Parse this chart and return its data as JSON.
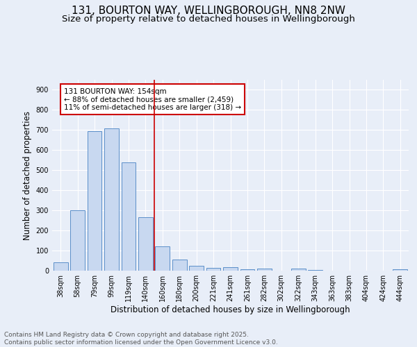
{
  "title_line1": "131, BOURTON WAY, WELLINGBOROUGH, NN8 2NW",
  "title_line2": "Size of property relative to detached houses in Wellingborough",
  "xlabel": "Distribution of detached houses by size in Wellingborough",
  "ylabel": "Number of detached properties",
  "categories": [
    "38sqm",
    "58sqm",
    "79sqm",
    "99sqm",
    "119sqm",
    "140sqm",
    "160sqm",
    "180sqm",
    "200sqm",
    "221sqm",
    "241sqm",
    "261sqm",
    "282sqm",
    "302sqm",
    "322sqm",
    "343sqm",
    "363sqm",
    "383sqm",
    "404sqm",
    "424sqm",
    "444sqm"
  ],
  "values": [
    42,
    300,
    695,
    707,
    538,
    265,
    122,
    57,
    25,
    15,
    17,
    6,
    10,
    1,
    10,
    2,
    1,
    1,
    0,
    0,
    8
  ],
  "bar_color": "#c8d8f0",
  "bar_edge_color": "#5b8fc9",
  "vline_x": 5.5,
  "vline_color": "#cc0000",
  "annotation_text": "131 BOURTON WAY: 154sqm\n← 88% of detached houses are smaller (2,459)\n11% of semi-detached houses are larger (318) →",
  "annotation_box_color": "#cc0000",
  "annotation_text_color": "#000000",
  "ylim": [
    0,
    950
  ],
  "yticks": [
    0,
    100,
    200,
    300,
    400,
    500,
    600,
    700,
    800,
    900
  ],
  "bg_color": "#e8eef8",
  "plot_bg_color": "#e8eef8",
  "footer": "Contains HM Land Registry data © Crown copyright and database right 2025.\nContains public sector information licensed under the Open Government Licence v3.0.",
  "title_fontsize": 11,
  "subtitle_fontsize": 9.5,
  "tick_fontsize": 7,
  "label_fontsize": 8.5,
  "footer_fontsize": 6.5,
  "annotation_fontsize": 7.5
}
